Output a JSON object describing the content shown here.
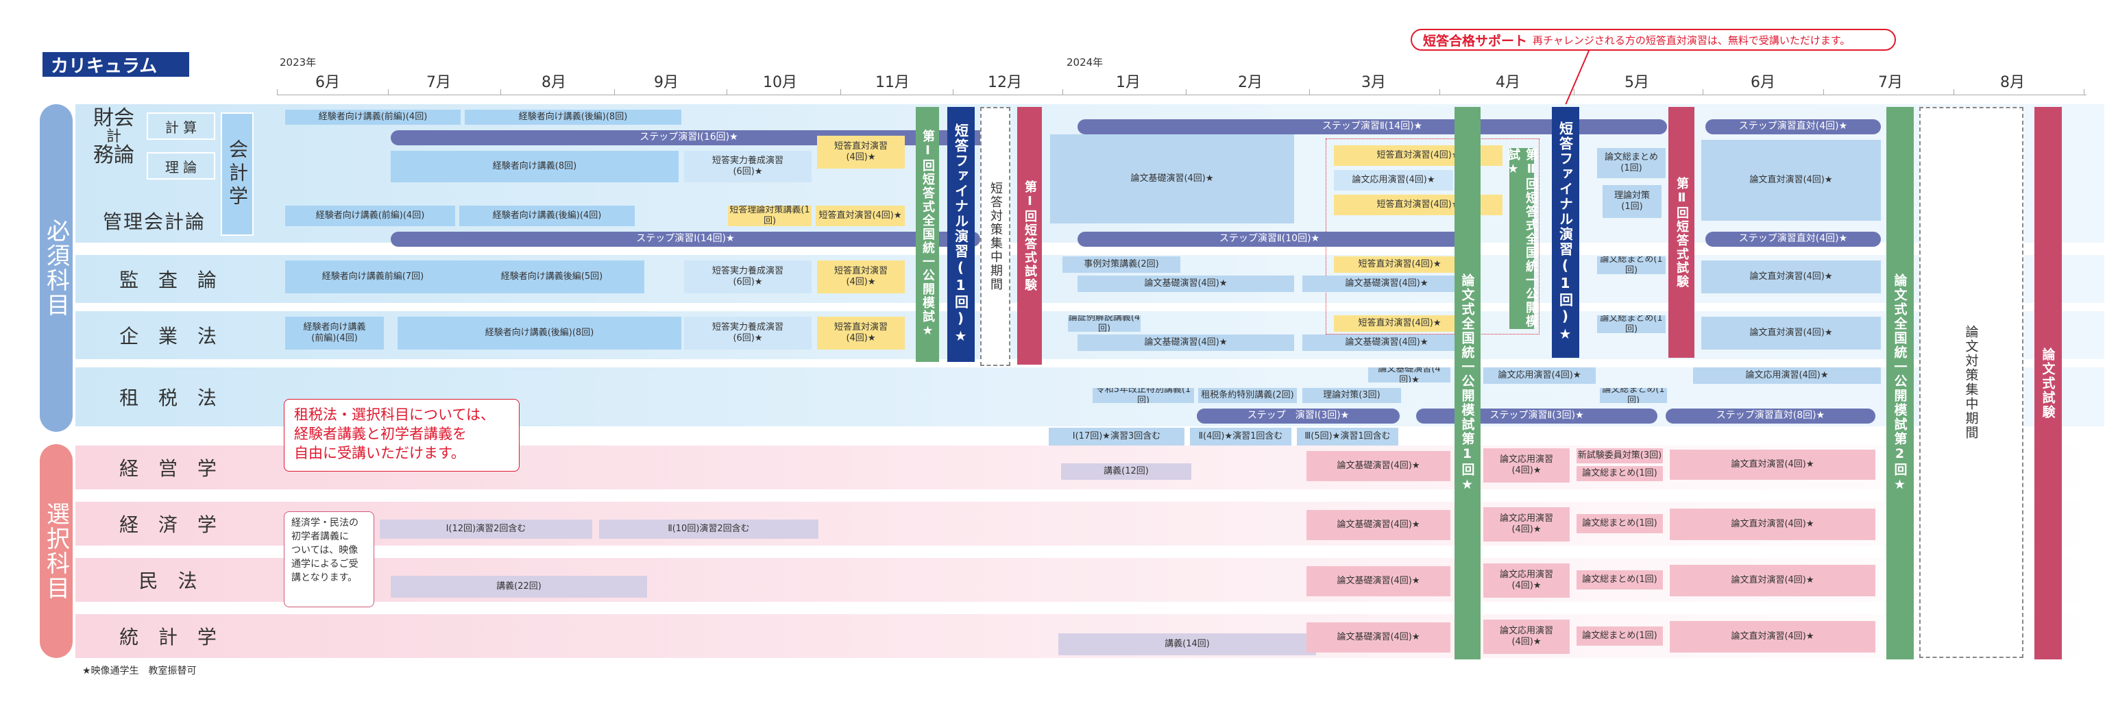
{
  "title": "カリキュラム",
  "years": {
    "y2023": "2023年",
    "y2024": "2024年"
  },
  "months": [
    "6月",
    "7月",
    "8月",
    "9月",
    "10月",
    "11月",
    "12月",
    "1月",
    "2月",
    "3月",
    "4月",
    "5月",
    "6月",
    "7月",
    "8月"
  ],
  "support": {
    "label": "短答合格サポート",
    "text": "再チャレンジされる方の短答直対演習は、無料で受講いただけます。"
  },
  "groups": {
    "required": "必須科目",
    "elective": "選択科目"
  },
  "subjects": {
    "zaimu1": "財会",
    "zaimu2": "計",
    "zaimu3": "務論",
    "keisan": "計 算",
    "riron": "理 論",
    "kaikeigaku": "会計学",
    "kanri": "管理会計論",
    "kansa": "監 査 論",
    "kigyo": "企 業 法",
    "sozei": "租 税 法",
    "keiei": "経 営 学",
    "keizai": "経 済 学",
    "minpo": "民 法",
    "tokei": "統 計 学"
  },
  "notes": {
    "sozei": "租税法・選択科目については、\n経験者講義と初学者講義を\n自由に受講いただけます。",
    "keizai": "経済学・民法の\n初学者講義に\nついては、映像\n通学によるご受\n講となります。",
    "footer": "★映像通学生　教室振替可"
  },
  "vbars": {
    "moshi1": "第Ⅰ回短答式全国統一公開模試★",
    "final1": "短答ファイナル演習(1回)★",
    "shuchu1": "短答対策集中期間",
    "shiken1": "第Ⅰ回短答式試験",
    "ronmoshi1": "論文式全国統一公開模試第1回★",
    "moshi2": "第Ⅱ回短答式全国統一公開模試★",
    "final2": "短答ファイナル演習(1回)★",
    "shiken2": "第Ⅱ回短答式試験",
    "ronmoshi2": "論文式全国統一公開模試第2回★",
    "ronshuchu": "論文対策集中期間",
    "ronshiken": "論文式試験"
  },
  "bars": {
    "b1": "経験者向け講義(前編)(4回)",
    "b2": "経験者向け講義(後編)(8回)",
    "b3": "ステップ演習Ⅰ(16回)★",
    "b4": "経験者向け講義(8回)",
    "b5": "短答実力養成演習\n(6回)★",
    "b6": "短答直対演習\n(4回)★",
    "b7": "論文基礎演習(4回)★",
    "b8": "ステップ演習Ⅱ(14回)★",
    "b9": "短答直対演習(4回)★",
    "b10": "論文応用演習(4回)★",
    "b11": "短答直対演習(4回)★",
    "b12": "論文総まとめ\n(1回)",
    "b13": "理論対策\n(1回)",
    "b14": "ステップ演習直対(4回)★",
    "b15": "論文直対演習(4回)★",
    "c1": "経験者向け講義(前編)(4回)",
    "c2": "経験者向け講義(後編)(4回)",
    "c3": "短答理論対策講義(1回)",
    "c4": "短答直対演習(4回)★",
    "c5": "ステップ演習Ⅰ(14回)★",
    "c6": "ステップ演習Ⅱ(10回)★",
    "c7": "ステップ演習直対(4回)★",
    "d1": "経験者向け講義前編(7回)",
    "d2": "経験者向け講義後編(5回)",
    "d3": "短答実力養成演習\n(6回)★",
    "d4": "短答直対演習\n(4回)★",
    "d5": "事例対策講義(2回)",
    "d6": "論文基礎演習(4回)★",
    "d7": "短答直対演習(4回)★",
    "d8": "論文基礎演習(4回)★",
    "d9": "論文総まとめ(1回)",
    "d10": "論文直対演習(4回)★",
    "e1": "経験者向け講義\n(前編)(4回)",
    "e2": "経験者向け講義(後編)(8回)",
    "e3": "短答実力養成演習\n(6回)★",
    "e4": "短答直対演習\n(4回)★",
    "e5": "論証例解説講義(4回)",
    "e6": "論文基礎演習(4回)★",
    "e7": "短答直対演習(4回)★",
    "e8": "論文基礎演習(4回)★",
    "e9": "論文総まとめ(1回)",
    "e10": "論文直対演習(4回)★",
    "f1": "論文基礎演習(4回)★",
    "f2": "論文応用演習(4回)★",
    "f3": "論文応用演習(4回)★",
    "f4": "論文総まとめ(1回)",
    "f5": "令和5年改正特別講義(1回)",
    "f6": "租税条約特別講義(2回)",
    "f7": "理論対策(3回)",
    "f8": "ステップ　演習Ⅰ(3回)★",
    "f9": "ステップ演習Ⅱ(3回)★",
    "f10": "ステップ演習直対(8回)★",
    "f11": "Ⅰ(17回)★演習3回含む",
    "f12": "Ⅱ(4回)★演習1回含む",
    "f13": "Ⅲ(5回)★演習1回含む",
    "g1": "講義(12回)",
    "g2": "論文基礎演習(4回)★",
    "g3": "論文応用演習\n(4回)★",
    "g4": "新試験委員対策(3回)",
    "g5": "論文総まとめ(1回)",
    "g6": "論文直対演習(4回)★",
    "h1": "Ⅰ(12回)演習2回含む",
    "h2": "Ⅱ(10回)演習2回含む",
    "h3": "論文基礎演習(4回)★",
    "h4": "論文応用演習\n(4回)★",
    "h5": "論文総まとめ(1回)",
    "h6": "論文直対演習(4回)★",
    "i1": "講義(22回)",
    "i2": "論文基礎演習(4回)★",
    "i3": "論文応用演習\n(4回)★",
    "i4": "論文総まとめ(1回)",
    "i5": "論文直対演習(4回)★",
    "j1": "講義(14回)",
    "j2": "論文基礎演習(4回)★",
    "j3": "論文応用演習\n(4回)★",
    "j4": "論文総まとめ(1回)",
    "j5": "論文直対演習(4回)★"
  },
  "colors": {
    "navy": "#1a3d8f",
    "green": "#6aaa78",
    "red": "#c84a6a",
    "step": "#6b74b3",
    "accent": "#e0192f"
  }
}
